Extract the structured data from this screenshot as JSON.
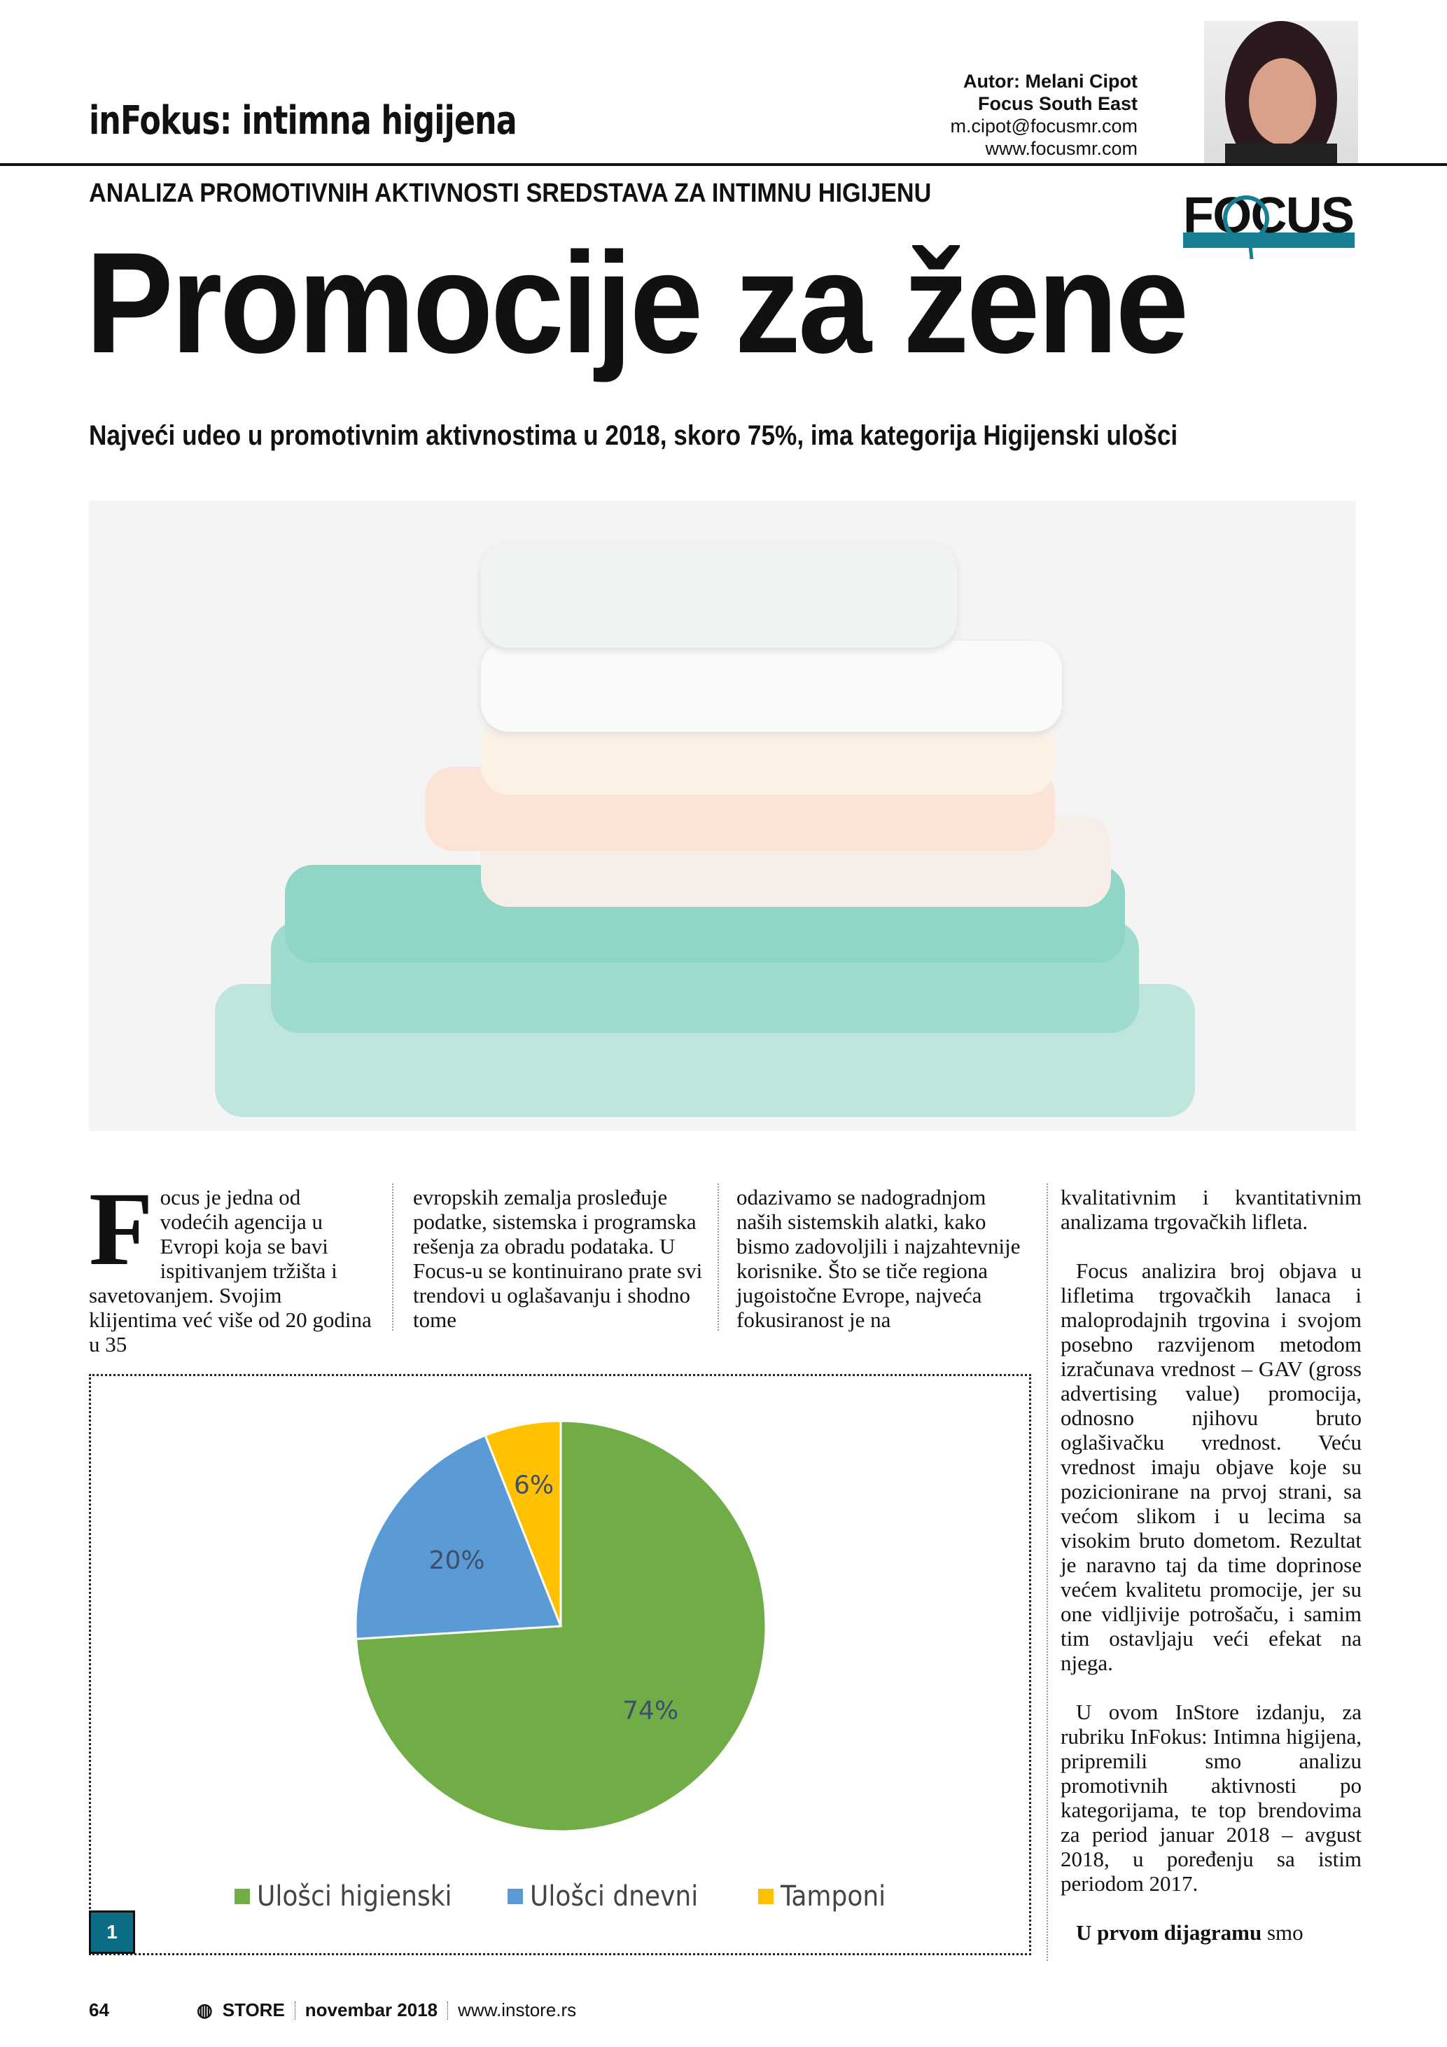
{
  "header": {
    "section": "inFokus: intimna higijena",
    "author_lines": [
      "Autor: Melani Cipot",
      "Focus South East",
      "m.cipot@focusmr.com",
      "www.focusmr.com"
    ],
    "logo": "FOCUS"
  },
  "kicker": "ANALIZA PROMOTIVNIH AKTIVNOSTI SREDSTAVA ZA INTIMNU HIGIJENU",
  "headline": "Promocije za žene",
  "subtitle": "Najveći udeo u promotivnim aktivnostima u 2018, skoro 75%, ima kategorija Higijenski ulošci",
  "body": {
    "dropcap": "F",
    "col1": "ocus je jedna od vodećih agencija u Evropi koja se bavi ispitivanjem tržišta i savetovanjem. Svojim klijentima već više od 20 godina u 35",
    "col2": "evropskih zemalja prosleđuje podatke, sistemska i programska rešenja za obradu podataka. U Focus-u se kontinuirano prate svi trendovi u oglašavanju i shodno tome",
    "col3": "odazivamo se nadogradnjom naših sistemskih alatki, kako bismo zadovoljili i najzahtevnije korisnike. Što se tiče regiona jugoistočne Evrope, najveća fokusiranost je na",
    "col4_p1": "kvalitativnim i kvantitativnim analizama trgovačkih lifleta.",
    "col4_p2": "Focus analizira broj objava u lifletima trgovačkih lanaca i maloprodajnih trgovina i svojom posebno razvijenom metodom izračunava vrednost – GAV (gross advertising value) promocija, odnosno njihovu bruto oglašivačku vrednost. Veću vrednost imaju objave koje su pozicionirane na prvoj strani, sa većom slikom i u lecima sa visokim bruto dometom. Rezultat je naravno taj da time doprinose većem kvalitetu promocije, jer su one vidljivije potrošaču, i samim tim ostavljaju veći efekat na njega.",
    "col4_p3": "U ovom InStore izdanju, za rubriku InFokus: Intimna higijena, pripremili smo analizu promotivnih aktivnosti po kategorijama, te top brendovima za period januar 2018 – avgust 2018, u poređenju sa istim periodom 2017.",
    "col4_p4_bold": "U prvom dijagramu",
    "col4_p4_rest": " smo"
  },
  "chart_data": {
    "type": "pie",
    "badge": "1",
    "legend_position": "bottom",
    "slices": [
      {
        "name": "Ulošci higienski",
        "value": 74,
        "label": "74%",
        "color": "#70ad47"
      },
      {
        "name": "Ulošci dnevni",
        "value": 20,
        "label": "20%",
        "color": "#5b9bd5"
      },
      {
        "name": "Tamponi",
        "value": 6,
        "label": "6%",
        "color": "#ffc000"
      }
    ]
  },
  "footer": {
    "page": "64",
    "brand": "STORE",
    "issue": "novembar 2018",
    "url": "www.instore.rs"
  }
}
